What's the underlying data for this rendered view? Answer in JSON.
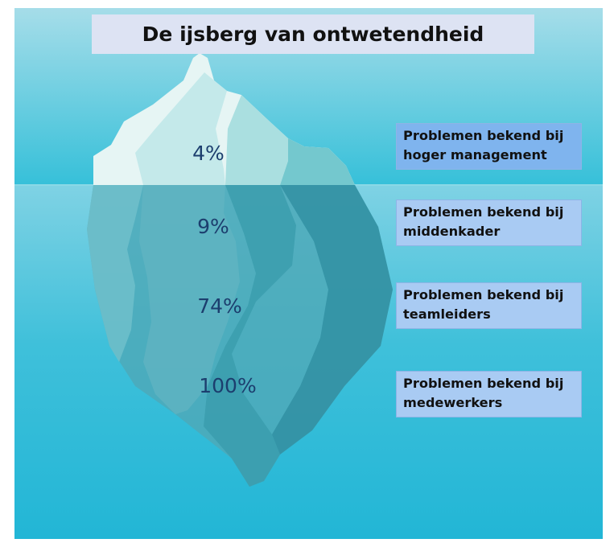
{
  "title": "De ijsberg van ontwetendheid",
  "levels": [
    {
      "percent": "4%",
      "label": "Problemen bekend bij hoger management"
    },
    {
      "percent": "9%",
      "label": "Problemen bekend bij middenkader"
    },
    {
      "percent": "74%",
      "label": "Problemen bekend bij teamleiders"
    },
    {
      "percent": "100%",
      "label": "Problemen bekend bij medewerkers"
    }
  ],
  "colors": {
    "sky_top": "#a6dde9",
    "sea": "#2bbad8",
    "ice_light": "#e6f5f4",
    "ice_shadow": "#58b9c5",
    "label_box": "#a9cbf3",
    "label_box_highlight": "#7fb4ee",
    "title_box": "#dde3f3",
    "percent_text": "#1c3e6e"
  }
}
